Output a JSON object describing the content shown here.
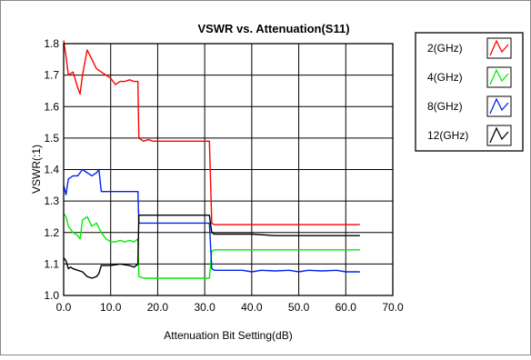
{
  "chart_data": {
    "type": "line",
    "title": "VSWR vs. Attenuation(S11)",
    "xlabel": "Attenuation Bit Setting(dB)",
    "ylabel": "VSWR(:1)",
    "xlim": [
      0,
      70
    ],
    "ylim": [
      1.0,
      1.8
    ],
    "x_ticks": [
      "0.0",
      "10.0",
      "20.0",
      "30.0",
      "40.0",
      "50.0",
      "60.0",
      "70.0"
    ],
    "y_ticks": [
      "1.0",
      "1.1",
      "1.2",
      "1.3",
      "1.4",
      "1.5",
      "1.6",
      "1.7",
      "1.8"
    ],
    "grid": true,
    "legend_position": "right",
    "series": [
      {
        "name": "2(GHz)",
        "color": "#ff0000",
        "x": [
          0,
          0.5,
          1,
          2,
          3,
          3.5,
          4,
          5,
          6,
          7,
          8,
          9,
          10,
          11,
          12,
          13,
          14,
          15,
          15.8,
          16,
          17,
          18,
          19,
          20,
          25,
          31,
          31.5,
          32,
          35,
          40,
          45,
          50,
          55,
          60,
          63
        ],
        "y": [
          1.81,
          1.76,
          1.7,
          1.71,
          1.66,
          1.64,
          1.7,
          1.78,
          1.75,
          1.72,
          1.71,
          1.7,
          1.69,
          1.67,
          1.68,
          1.68,
          1.685,
          1.68,
          1.68,
          1.5,
          1.49,
          1.495,
          1.49,
          1.49,
          1.49,
          1.49,
          1.23,
          1.225,
          1.225,
          1.225,
          1.225,
          1.225,
          1.225,
          1.225,
          1.225
        ]
      },
      {
        "name": "4(GHz)",
        "color": "#00ee00",
        "x": [
          0,
          0.5,
          1,
          2,
          3,
          3.5,
          4,
          5,
          6,
          7,
          8,
          9,
          10,
          11,
          12,
          13,
          14,
          15,
          15.8,
          16,
          17,
          20,
          25,
          31,
          31.5,
          32,
          35,
          40,
          45,
          50,
          55,
          60,
          63
        ],
        "y": [
          1.26,
          1.25,
          1.22,
          1.2,
          1.19,
          1.18,
          1.24,
          1.25,
          1.22,
          1.23,
          1.2,
          1.18,
          1.17,
          1.17,
          1.175,
          1.17,
          1.175,
          1.17,
          1.18,
          1.06,
          1.055,
          1.055,
          1.055,
          1.055,
          1.14,
          1.145,
          1.145,
          1.145,
          1.145,
          1.145,
          1.145,
          1.145,
          1.145
        ]
      },
      {
        "name": "8(GHz)",
        "color": "#0022ee",
        "x": [
          0,
          0.5,
          1,
          2,
          3,
          4,
          5,
          6,
          7,
          7.5,
          8,
          9,
          10,
          12,
          14,
          15,
          15.8,
          16,
          17,
          20,
          25,
          31,
          31.5,
          32,
          35,
          38,
          40,
          42,
          45,
          48,
          50,
          52,
          55,
          58,
          60,
          63
        ],
        "y": [
          1.35,
          1.32,
          1.37,
          1.38,
          1.38,
          1.4,
          1.39,
          1.38,
          1.39,
          1.4,
          1.33,
          1.33,
          1.33,
          1.33,
          1.33,
          1.33,
          1.33,
          1.23,
          1.23,
          1.23,
          1.23,
          1.23,
          1.085,
          1.08,
          1.08,
          1.08,
          1.075,
          1.08,
          1.078,
          1.08,
          1.075,
          1.08,
          1.078,
          1.08,
          1.075,
          1.075
        ]
      },
      {
        "name": "12(GHz)",
        "color": "#000000",
        "x": [
          0,
          0.5,
          1,
          1.5,
          2,
          3,
          4,
          5,
          6,
          7,
          7.5,
          8,
          9,
          10,
          12,
          14,
          15,
          15.8,
          16,
          17,
          20,
          25,
          31,
          31.5,
          32,
          35,
          40,
          45,
          50,
          55,
          60,
          63
        ],
        "y": [
          1.12,
          1.11,
          1.085,
          1.09,
          1.085,
          1.08,
          1.075,
          1.06,
          1.055,
          1.06,
          1.07,
          1.095,
          1.095,
          1.095,
          1.1,
          1.095,
          1.09,
          1.1,
          1.255,
          1.255,
          1.255,
          1.255,
          1.255,
          1.2,
          1.195,
          1.195,
          1.195,
          1.19,
          1.19,
          1.19,
          1.19,
          1.19
        ]
      }
    ]
  }
}
